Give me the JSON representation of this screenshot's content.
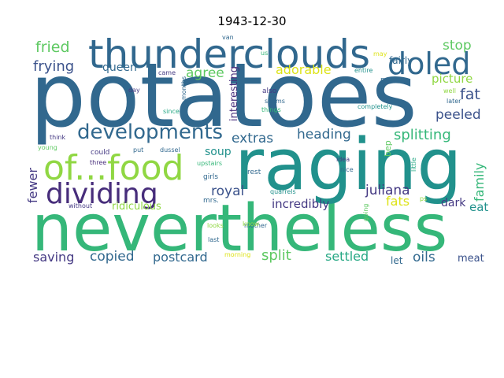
{
  "title": "1943-12-30",
  "palette": {
    "navy": "#3b528b",
    "teal": "#21918c",
    "green": "#35b779",
    "lime": "#90d743",
    "yellow": "#dde318",
    "purple": "#472d7b",
    "blue": "#31688e",
    "sea": "#26a884",
    "mint": "#5ec962",
    "indigo": "#443983"
  },
  "words": [
    {
      "text": "potatoes",
      "color": "blue"
    },
    {
      "text": "nevertheless",
      "color": "green"
    },
    {
      "text": "raging",
      "color": "teal"
    },
    {
      "text": "thunderclouds",
      "color": "blue"
    },
    {
      "text": "doled",
      "color": "blue"
    },
    {
      "text": "of...food",
      "color": "lime"
    },
    {
      "text": "dividing",
      "color": "purple"
    },
    {
      "text": "developments",
      "color": "blue"
    },
    {
      "text": "fried",
      "color": "mint"
    },
    {
      "text": "frying",
      "color": "navy"
    },
    {
      "text": "queen",
      "color": "blue"
    },
    {
      "text": "agree",
      "color": "mint"
    },
    {
      "text": "adorable",
      "color": "yellow"
    },
    {
      "text": "stop",
      "color": "mint"
    },
    {
      "text": "fat",
      "color": "navy"
    },
    {
      "text": "picture",
      "color": "lime"
    },
    {
      "text": "peeled",
      "color": "navy"
    },
    {
      "text": "splitting",
      "color": "green"
    },
    {
      "text": "heading",
      "color": "blue"
    },
    {
      "text": "extras",
      "color": "blue"
    },
    {
      "text": "family",
      "color": "green"
    },
    {
      "text": "juliana",
      "color": "indigo"
    },
    {
      "text": "royal",
      "color": "navy"
    },
    {
      "text": "soup",
      "color": "teal"
    },
    {
      "text": "fewer",
      "color": "indigo"
    },
    {
      "text": "fats",
      "color": "yellow"
    },
    {
      "text": "dark",
      "color": "indigo"
    },
    {
      "text": "eat",
      "color": "teal"
    },
    {
      "text": "incredibly",
      "color": "indigo"
    },
    {
      "text": "ridiculous",
      "color": "lime"
    },
    {
      "text": "saving",
      "color": "indigo"
    },
    {
      "text": "copied",
      "color": "blue"
    },
    {
      "text": "postcard",
      "color": "blue"
    },
    {
      "text": "split",
      "color": "mint"
    },
    {
      "text": "settled",
      "color": "sea"
    },
    {
      "text": "oils",
      "color": "blue"
    },
    {
      "text": "let",
      "color": "blue"
    },
    {
      "text": "meat",
      "color": "navy"
    },
    {
      "text": "interesting",
      "color": "purple"
    },
    {
      "text": "fairly",
      "color": "blue"
    },
    {
      "text": "van",
      "color": "blue"
    },
    {
      "text": "us",
      "color": "green"
    },
    {
      "text": "may",
      "color": "yellow"
    },
    {
      "text": "entire",
      "color": "teal"
    },
    {
      "text": "mr.",
      "color": "blue"
    },
    {
      "text": "well",
      "color": "lime"
    },
    {
      "text": "later",
      "color": "blue"
    },
    {
      "text": "came",
      "color": "indigo"
    },
    {
      "text": "months",
      "color": "blue"
    },
    {
      "text": "day",
      "color": "indigo"
    },
    {
      "text": "also",
      "color": "indigo"
    },
    {
      "text": "seems",
      "color": "blue"
    },
    {
      "text": "things",
      "color": "green"
    },
    {
      "text": "completely",
      "color": "teal"
    },
    {
      "text": "since",
      "color": "sea"
    },
    {
      "text": "think",
      "color": "indigo"
    },
    {
      "text": "young",
      "color": "mint"
    },
    {
      "text": "could",
      "color": "indigo"
    },
    {
      "text": "put",
      "color": "blue"
    },
    {
      "text": "dussel",
      "color": "blue"
    },
    {
      "text": "bep",
      "color": "mint"
    },
    {
      "text": "three",
      "color": "purple"
    },
    {
      "text": "upstairs",
      "color": "green"
    },
    {
      "text": "girls",
      "color": "blue"
    },
    {
      "text": "rest",
      "color": "blue"
    },
    {
      "text": "idea",
      "color": "indigo"
    },
    {
      "text": "nice",
      "color": "blue"
    },
    {
      "text": "quarrels",
      "color": "teal"
    },
    {
      "text": "little",
      "color": "sea"
    },
    {
      "text": "mother",
      "color": "blue"
    },
    {
      "text": "without",
      "color": "indigo"
    },
    {
      "text": "mrs.",
      "color": "blue"
    },
    {
      "text": "going",
      "color": "mint"
    },
    {
      "text": "looks",
      "color": "lime"
    },
    {
      "text": "know",
      "color": "lime"
    },
    {
      "text": "last",
      "color": "blue"
    },
    {
      "text": "morning",
      "color": "yellow"
    },
    {
      "text": "ps",
      "color": "lime"
    }
  ]
}
